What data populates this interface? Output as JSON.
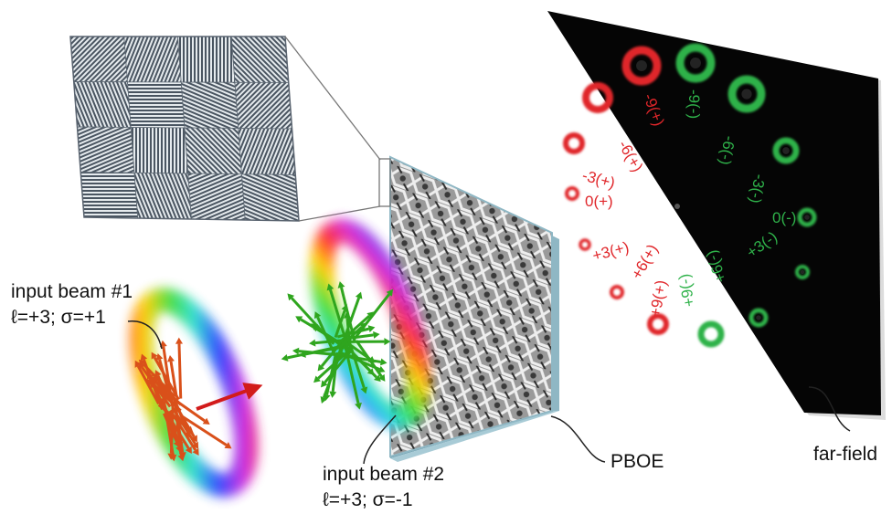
{
  "labels": {
    "beam1_title": "input beam #1",
    "beam1_params": "ℓ=+3; σ=+1",
    "beam2_title": "input beam #2",
    "beam2_params": "ℓ=+3; σ=-1",
    "element": "PBOE",
    "farfield": "far-field"
  },
  "colors": {
    "red_order": "#e0262a",
    "green_order": "#2fb24a",
    "farfield_bg": "#050505",
    "pboe_glass": "#8fb7c4",
    "beam1_arrows": "#d9501a",
    "beam2_arrows": "#2fa51e",
    "propagation_arrow": "#d21b1b"
  },
  "diffraction_orders": [
    {
      "text": "-9(+)",
      "color": "red"
    },
    {
      "text": "-9(-)",
      "color": "green"
    },
    {
      "text": "-6(+)",
      "color": "red"
    },
    {
      "text": "-6(-)",
      "color": "green"
    },
    {
      "text": "-3(+)",
      "color": "red"
    },
    {
      "text": "-3(-)",
      "color": "green"
    },
    {
      "text": "0(+)",
      "color": "red"
    },
    {
      "text": "0(-)",
      "color": "green"
    },
    {
      "text": "+3(+)",
      "color": "red"
    },
    {
      "text": "+3(-)",
      "color": "green"
    },
    {
      "text": "+6(+)",
      "color": "red"
    },
    {
      "text": "+6(-)",
      "color": "green"
    },
    {
      "text": "+9(+)",
      "color": "red"
    },
    {
      "text": "+9(-)",
      "color": "green"
    }
  ]
}
